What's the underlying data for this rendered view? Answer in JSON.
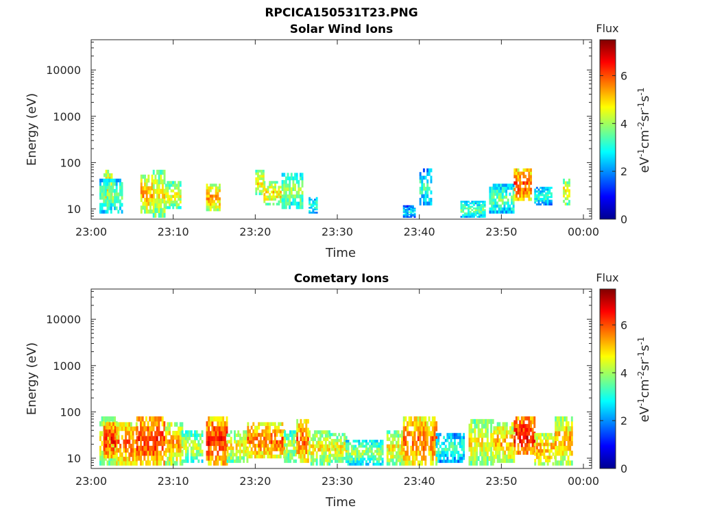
{
  "figure_title": "RPCICA150531T23.PNG",
  "chart_data": [
    {
      "type": "heatmap",
      "title": "Solar Wind Ions",
      "xlabel": "Time",
      "ylabel": "Energy (eV)",
      "y_scale": "log",
      "x_range": [
        "23:00",
        "00:01"
      ],
      "ylim": [
        6,
        45000
      ],
      "x_ticks": [
        "23:00",
        "23:10",
        "23:20",
        "23:30",
        "23:40",
        "23:50",
        "00:00"
      ],
      "y_ticks": [
        "10",
        "100",
        "1000",
        "10000"
      ],
      "colorbar": {
        "title": "Flux",
        "label": "eV⁻¹cm⁻²sr⁻¹s⁻¹",
        "range": [
          0,
          7.5
        ],
        "ticks": [
          "0",
          "2",
          "4",
          "6"
        ],
        "colormap": "jet"
      },
      "patches": [
        {
          "t": [
            1.5,
            2.5
          ],
          "e": [
            12,
            70
          ],
          "flux": 5.5
        },
        {
          "t": [
            1.0,
            3.8
          ],
          "e": [
            8,
            45
          ],
          "flux": 4.0
        },
        {
          "t": [
            6.0,
            7.5
          ],
          "e": [
            8,
            55
          ],
          "flux": 5.5
        },
        {
          "t": [
            7.5,
            9.0
          ],
          "e": [
            6.5,
            70
          ],
          "flux": 5.0
        },
        {
          "t": [
            9.0,
            10.8
          ],
          "e": [
            10,
            40
          ],
          "flux": 4.8
        },
        {
          "t": [
            14.0,
            15.6
          ],
          "e": [
            9,
            35
          ],
          "flux": 5.5
        },
        {
          "t": [
            20.0,
            21.0
          ],
          "e": [
            20,
            70
          ],
          "flux": 5.0
        },
        {
          "t": [
            21.0,
            23.0
          ],
          "e": [
            12,
            40
          ],
          "flux": 5.2
        },
        {
          "t": [
            23.2,
            25.8
          ],
          "e": [
            10,
            60
          ],
          "flux": 4.2
        },
        {
          "t": [
            26.5,
            27.5
          ],
          "e": [
            8,
            18
          ],
          "flux": 3.5
        },
        {
          "t": [
            38.0,
            39.5
          ],
          "e": [
            6.5,
            12
          ],
          "flux": 3.0
        },
        {
          "t": [
            40.0,
            41.5
          ],
          "e": [
            12,
            75
          ],
          "flux": 3.5
        },
        {
          "t": [
            45.0,
            48.0
          ],
          "e": [
            6.5,
            15
          ],
          "flux": 3.8
        },
        {
          "t": [
            48.5,
            51.5
          ],
          "e": [
            8,
            35
          ],
          "flux": 3.8
        },
        {
          "t": [
            51.5,
            53.5
          ],
          "e": [
            15,
            75
          ],
          "flux": 6.2
        },
        {
          "t": [
            54.0,
            56.0
          ],
          "e": [
            12,
            30
          ],
          "flux": 3.5
        },
        {
          "t": [
            57.5,
            58.2
          ],
          "e": [
            12,
            45
          ],
          "flux": 5.0
        }
      ]
    },
    {
      "type": "heatmap",
      "title": "Cometary Ions",
      "xlabel": "Time",
      "ylabel": "Energy (eV)",
      "y_scale": "log",
      "x_range": [
        "23:00",
        "00:01"
      ],
      "ylim": [
        6,
        45000
      ],
      "x_ticks": [
        "23:00",
        "23:10",
        "23:20",
        "23:30",
        "23:40",
        "23:50",
        "00:00"
      ],
      "y_ticks": [
        "10",
        "100",
        "1000",
        "10000"
      ],
      "colorbar": {
        "title": "Flux",
        "label": "eV⁻¹cm⁻²sr⁻¹s⁻¹",
        "range": [
          0,
          7.5
        ],
        "ticks": [
          "0",
          "2",
          "4",
          "6"
        ],
        "colormap": "jet"
      },
      "patches": [
        {
          "t": [
            1.0,
            3.0
          ],
          "e": [
            7,
            80
          ],
          "flux": 5.0
        },
        {
          "t": [
            1.5,
            3.0
          ],
          "e": [
            10,
            60
          ],
          "flux": 6.5
        },
        {
          "t": [
            3.0,
            5.5
          ],
          "e": [
            7,
            60
          ],
          "flux": 6.0
        },
        {
          "t": [
            5.5,
            9.0
          ],
          "e": [
            7,
            80
          ],
          "flux": 6.5
        },
        {
          "t": [
            9.0,
            11.0
          ],
          "e": [
            7,
            60
          ],
          "flux": 5.5
        },
        {
          "t": [
            11.0,
            13.5
          ],
          "e": [
            8,
            40
          ],
          "flux": 4.5
        },
        {
          "t": [
            14.0,
            16.5
          ],
          "e": [
            7,
            80
          ],
          "flux": 6.5
        },
        {
          "t": [
            16.5,
            19.0
          ],
          "e": [
            8,
            40
          ],
          "flux": 5.0
        },
        {
          "t": [
            19.0,
            23.5
          ],
          "e": [
            10,
            60
          ],
          "flux": 6.0
        },
        {
          "t": [
            23.5,
            25.0
          ],
          "e": [
            8,
            40
          ],
          "flux": 4.5
        },
        {
          "t": [
            25.0,
            26.5
          ],
          "e": [
            8,
            70
          ],
          "flux": 6.0
        },
        {
          "t": [
            26.5,
            29.0
          ],
          "e": [
            7,
            40
          ],
          "flux": 5.0
        },
        {
          "t": [
            29.0,
            31.0
          ],
          "e": [
            8,
            35
          ],
          "flux": 5.0
        },
        {
          "t": [
            31.0,
            35.5
          ],
          "e": [
            7,
            25
          ],
          "flux": 4.2
        },
        {
          "t": [
            36.0,
            38.0
          ],
          "e": [
            7,
            40
          ],
          "flux": 5.0
        },
        {
          "t": [
            38.0,
            42.0
          ],
          "e": [
            7,
            80
          ],
          "flux": 6.0
        },
        {
          "t": [
            42.0,
            45.5
          ],
          "e": [
            8,
            35
          ],
          "flux": 3.5
        },
        {
          "t": [
            46.0,
            49.0
          ],
          "e": [
            7,
            70
          ],
          "flux": 5.0
        },
        {
          "t": [
            49.0,
            51.5
          ],
          "e": [
            8,
            60
          ],
          "flux": 5.5
        },
        {
          "t": [
            51.5,
            54.0
          ],
          "e": [
            12,
            80
          ],
          "flux": 6.8
        },
        {
          "t": [
            54.0,
            56.5
          ],
          "e": [
            7,
            35
          ],
          "flux": 5.5
        },
        {
          "t": [
            56.5,
            58.5
          ],
          "e": [
            7,
            80
          ],
          "flux": 5.5
        }
      ]
    }
  ]
}
